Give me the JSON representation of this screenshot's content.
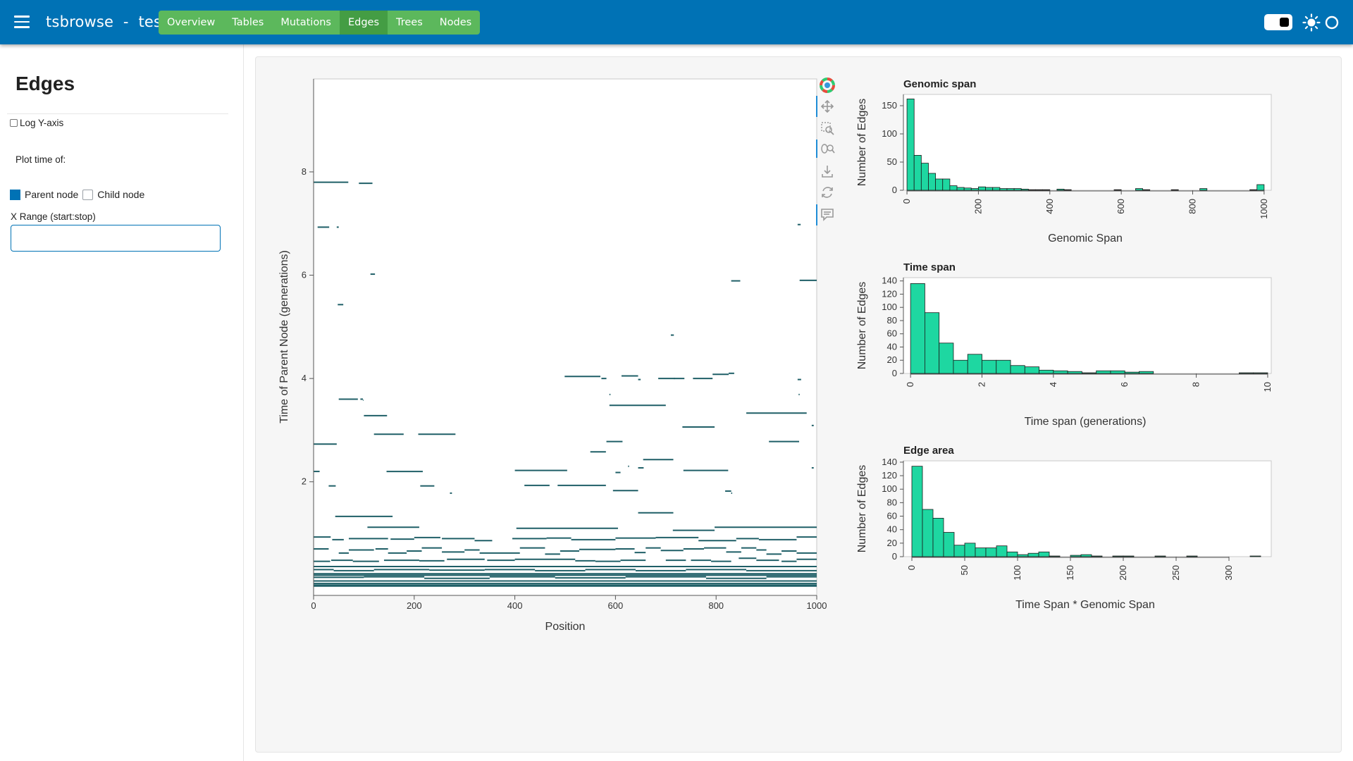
{
  "header": {
    "title": "tsbrowse  -  test",
    "tabs": [
      {
        "label": "Overview",
        "active": false
      },
      {
        "label": "Tables",
        "active": false
      },
      {
        "label": "Mutations",
        "active": false
      },
      {
        "label": "Edges",
        "active": true
      },
      {
        "label": "Trees",
        "active": false
      },
      {
        "label": "Nodes",
        "active": false
      }
    ],
    "icons": [
      "menu-icon",
      "theme-toggle",
      "sun-icon",
      "circle-icon"
    ]
  },
  "sidebar": {
    "title": "Edges",
    "log_y_label": "Log Y-axis",
    "log_y_checked": false,
    "plot_time_label": "Plot time of:",
    "options": [
      {
        "label": "Parent node",
        "selected": true
      },
      {
        "label": "Child node",
        "selected": false
      }
    ],
    "xrange_label": "X Range (start:stop)",
    "xrange_value": ""
  },
  "colors": {
    "header": "#0072b5",
    "tabs": "#5cb85c",
    "tab_active": "#449d44",
    "edge_line": "#1f5f67",
    "hist_fill": "#1ed7a1"
  },
  "toolbar": {
    "icons": [
      "bokeh-logo-icon",
      "pan-icon",
      "box-zoom-icon",
      "wheel-zoom-icon",
      "save-icon",
      "reset-icon",
      "hover-icon"
    ]
  },
  "chart_data": [
    {
      "type": "scatter",
      "xlabel": "Position",
      "ylabel": "Time of Parent Node (generations)",
      "xlim": [
        0,
        1000
      ],
      "ylim": [
        -0.2,
        9.8
      ],
      "xticks": [
        0,
        200,
        400,
        600,
        800,
        1000
      ],
      "yticks": [
        2,
        4,
        6,
        8
      ],
      "segments": [
        [
          0,
          69,
          7.8
        ],
        [
          90,
          117,
          7.78
        ],
        [
          8,
          31,
          6.93
        ],
        [
          46,
          50,
          6.93
        ],
        [
          962,
          968,
          6.98
        ],
        [
          113,
          122,
          6.02
        ],
        [
          48,
          59,
          5.43
        ],
        [
          830,
          848,
          5.89
        ],
        [
          966,
          1000,
          5.9
        ],
        [
          710,
          716,
          4.84
        ],
        [
          50,
          88,
          3.6
        ],
        [
          93,
          98,
          3.6
        ],
        [
          98,
          99,
          3.58
        ],
        [
          100,
          146,
          3.28
        ],
        [
          120,
          179,
          2.92
        ],
        [
          208,
          282,
          2.92
        ],
        [
          0,
          46,
          2.73
        ],
        [
          145,
          217,
          2.2
        ],
        [
          0,
          12,
          2.2
        ],
        [
          30,
          44,
          1.92
        ],
        [
          212,
          240,
          1.92
        ],
        [
          271,
          275,
          1.78
        ],
        [
          499,
          570,
          4.04
        ],
        [
          572,
          582,
          4.0
        ],
        [
          612,
          645,
          4.05
        ],
        [
          645,
          650,
          3.98
        ],
        [
          685,
          718,
          4.0
        ],
        [
          716,
          737,
          4.0
        ],
        [
          754,
          793,
          4.0
        ],
        [
          793,
          825,
          4.08
        ],
        [
          825,
          836,
          4.1
        ],
        [
          962,
          969,
          3.98
        ],
        [
          964,
          966,
          3.69
        ],
        [
          588,
          590,
          3.69
        ],
        [
          588,
          700,
          3.48
        ],
        [
          860,
          980,
          3.33
        ],
        [
          990,
          994,
          3.09
        ],
        [
          733,
          797,
          3.06
        ],
        [
          582,
          614,
          2.78
        ],
        [
          905,
          965,
          2.78
        ],
        [
          550,
          581,
          2.58
        ],
        [
          655,
          715,
          2.43
        ],
        [
          625,
          627,
          2.3
        ],
        [
          645,
          656,
          2.27
        ],
        [
          400,
          504,
          2.22
        ],
        [
          600,
          610,
          2.18
        ],
        [
          735,
          824,
          2.22
        ],
        [
          990,
          994,
          2.27
        ],
        [
          419,
          469,
          1.93
        ],
        [
          485,
          581,
          1.93
        ],
        [
          595,
          645,
          1.83
        ],
        [
          818,
          830,
          1.82
        ],
        [
          830,
          832,
          1.78
        ],
        [
          43,
          157,
          1.33
        ],
        [
          645,
          715,
          1.4
        ],
        [
          107,
          210,
          1.12
        ],
        [
          403,
          605,
          1.1
        ],
        [
          714,
          797,
          1.06
        ],
        [
          797,
          1000,
          1.12
        ],
        [
          0,
          34,
          0.93
        ],
        [
          37,
          60,
          0.88
        ],
        [
          70,
          148,
          0.9
        ],
        [
          153,
          200,
          0.89
        ],
        [
          200,
          252,
          0.92
        ],
        [
          255,
          320,
          0.9
        ],
        [
          320,
          355,
          0.86
        ],
        [
          395,
          463,
          0.9
        ],
        [
          463,
          512,
          0.91
        ],
        [
          512,
          600,
          0.88
        ],
        [
          600,
          680,
          0.91
        ],
        [
          680,
          765,
          0.92
        ],
        [
          765,
          840,
          0.86
        ],
        [
          840,
          885,
          0.9
        ],
        [
          885,
          960,
          0.88
        ],
        [
          960,
          1000,
          0.93
        ],
        [
          0,
          30,
          0.7
        ],
        [
          50,
          70,
          0.62
        ],
        [
          70,
          120,
          0.68
        ],
        [
          123,
          148,
          0.7
        ],
        [
          148,
          185,
          0.62
        ],
        [
          185,
          215,
          0.66
        ],
        [
          215,
          255,
          0.72
        ],
        [
          255,
          300,
          0.64
        ],
        [
          300,
          330,
          0.68
        ],
        [
          330,
          410,
          0.62
        ],
        [
          410,
          460,
          0.72
        ],
        [
          460,
          490,
          0.6
        ],
        [
          490,
          528,
          0.66
        ],
        [
          528,
          600,
          0.69
        ],
        [
          600,
          638,
          0.7
        ],
        [
          638,
          660,
          0.63
        ],
        [
          660,
          690,
          0.72
        ],
        [
          690,
          735,
          0.67
        ],
        [
          735,
          776,
          0.7
        ],
        [
          776,
          820,
          0.72
        ],
        [
          820,
          850,
          0.64
        ],
        [
          850,
          880,
          0.72
        ],
        [
          880,
          900,
          0.68
        ],
        [
          900,
          930,
          0.6
        ],
        [
          930,
          960,
          0.66
        ],
        [
          960,
          1000,
          0.62
        ],
        [
          0,
          33,
          0.46
        ],
        [
          35,
          78,
          0.48
        ],
        [
          78,
          130,
          0.46
        ],
        [
          140,
          210,
          0.48
        ],
        [
          210,
          260,
          0.47
        ],
        [
          265,
          340,
          0.5
        ],
        [
          345,
          400,
          0.48
        ],
        [
          400,
          520,
          0.5
        ],
        [
          520,
          560,
          0.47
        ],
        [
          560,
          610,
          0.46
        ],
        [
          610,
          660,
          0.48
        ],
        [
          700,
          740,
          0.48
        ],
        [
          750,
          790,
          0.48
        ],
        [
          790,
          830,
          0.46
        ],
        [
          845,
          880,
          0.52
        ],
        [
          880,
          925,
          0.48
        ],
        [
          930,
          960,
          0.46
        ],
        [
          960,
          1000,
          0.5
        ],
        [
          0,
          40,
          0.3
        ],
        [
          40,
          120,
          0.28
        ],
        [
          120,
          230,
          0.3
        ],
        [
          230,
          340,
          0.29
        ],
        [
          340,
          440,
          0.3
        ],
        [
          440,
          540,
          0.28
        ],
        [
          540,
          640,
          0.3
        ],
        [
          640,
          740,
          0.28
        ],
        [
          740,
          860,
          0.3
        ],
        [
          860,
          1000,
          0.28
        ],
        [
          0,
          100,
          0.15
        ],
        [
          100,
          220,
          0.16
        ],
        [
          220,
          350,
          0.13
        ],
        [
          350,
          480,
          0.16
        ],
        [
          480,
          620,
          0.14
        ],
        [
          620,
          780,
          0.16
        ],
        [
          780,
          900,
          0.13
        ],
        [
          900,
          1000,
          0.16
        ],
        [
          0,
          1000,
          0.03
        ],
        [
          0,
          1000,
          0.08
        ],
        [
          0,
          1000,
          0.22
        ],
        [
          0,
          1000,
          0.36
        ],
        [
          0,
          1000,
          -0.02
        ],
        [
          0,
          1000,
          0.0
        ],
        [
          0,
          1000,
          0.19
        ]
      ]
    },
    {
      "type": "bar",
      "title": "Genomic span",
      "xlabel": "Genomic Span",
      "ylabel": "Number of Edges",
      "xlim": [
        -10,
        1020
      ],
      "ylim": [
        0,
        170
      ],
      "xticks": [
        0,
        200,
        400,
        600,
        800,
        1000
      ],
      "yticks": [
        0,
        50,
        100,
        150
      ],
      "bin_width": 20,
      "bin_starts": [
        0,
        20,
        40,
        60,
        80,
        100,
        120,
        140,
        160,
        180,
        200,
        220,
        240,
        260,
        280,
        300,
        320,
        340,
        360,
        380,
        400,
        420,
        440,
        460,
        480,
        500,
        520,
        540,
        560,
        580,
        600,
        620,
        640,
        660,
        680,
        700,
        720,
        740,
        760,
        780,
        800,
        820,
        840,
        860,
        880,
        900,
        920,
        940,
        960,
        980
      ],
      "values": [
        162,
        62,
        48,
        30,
        20,
        20,
        8,
        5,
        4,
        3,
        6,
        5,
        5,
        3,
        3,
        3,
        2,
        1,
        1,
        1,
        0,
        2,
        1,
        0,
        0,
        0,
        0,
        0,
        0,
        1,
        0,
        0,
        3,
        1,
        0,
        0,
        0,
        1,
        0,
        0,
        0,
        3,
        0,
        0,
        0,
        0,
        0,
        0,
        1,
        10
      ]
    },
    {
      "type": "bar",
      "title": "Time span",
      "xlabel": "Time span (generations)",
      "ylabel": "Number of Edges",
      "xlim": [
        -0.2,
        10.1
      ],
      "ylim": [
        0,
        145
      ],
      "xticks": [
        0,
        2,
        4,
        6,
        8,
        10
      ],
      "yticks": [
        0,
        20,
        40,
        60,
        80,
        100,
        120,
        140
      ],
      "bin_width": 0.4,
      "bin_starts": [
        0,
        0.4,
        0.8,
        1.2,
        1.6,
        2.0,
        2.4,
        2.8,
        3.2,
        3.6,
        4.0,
        4.4,
        4.8,
        5.2,
        5.6,
        6.0,
        6.4,
        6.8,
        7.2,
        7.6,
        8.0,
        8.4,
        8.8,
        9.2,
        9.6
      ],
      "values": [
        136,
        92,
        46,
        20,
        29,
        20,
        20,
        12,
        10,
        5,
        4,
        3,
        1,
        4,
        4,
        2,
        3,
        0,
        0,
        0,
        0,
        0,
        0,
        1,
        1
      ]
    },
    {
      "type": "bar",
      "title": "Edge area",
      "xlabel": "Time Span * Genomic Span",
      "ylabel": "Number of Edges",
      "xlim": [
        -8,
        340
      ],
      "ylim": [
        0,
        142
      ],
      "xticks": [
        0,
        50,
        100,
        150,
        200,
        250,
        300
      ],
      "yticks": [
        0,
        20,
        40,
        60,
        80,
        100,
        120,
        140
      ],
      "bin_width": 10,
      "bin_starts": [
        0,
        10,
        20,
        30,
        40,
        50,
        60,
        70,
        80,
        90,
        100,
        110,
        120,
        130,
        140,
        150,
        160,
        170,
        180,
        190,
        200,
        210,
        220,
        230,
        240,
        250,
        260,
        270,
        280,
        290,
        300,
        310,
        320
      ],
      "values": [
        134,
        70,
        57,
        36,
        17,
        20,
        13,
        13,
        16,
        7,
        3,
        5,
        7,
        1,
        0,
        2,
        3,
        1,
        0,
        1,
        1,
        0,
        0,
        1,
        0,
        0,
        1,
        0,
        0,
        0,
        0,
        0,
        1
      ]
    }
  ]
}
